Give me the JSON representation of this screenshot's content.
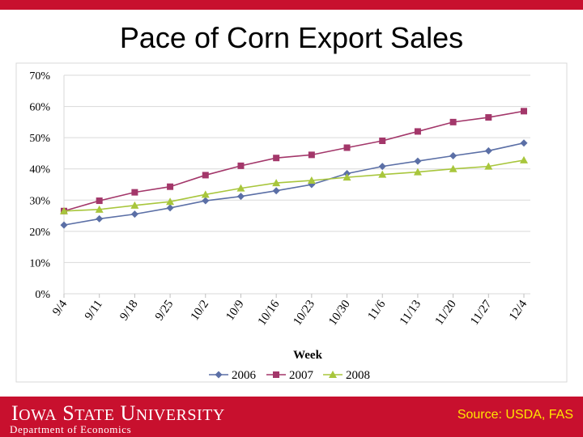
{
  "slide": {
    "title": "Pace of Corn Export Sales"
  },
  "footer": {
    "university": "Iowa State University",
    "department": "Department of Economics",
    "source": "Source: USDA, FAS"
  },
  "chart_data": {
    "type": "line",
    "title": "Pace of Corn Export Sales",
    "xlabel": "Week",
    "ylabel": "",
    "categories": [
      "9/4",
      "9/11",
      "9/18",
      "9/25",
      "10/2",
      "10/9",
      "10/16",
      "10/23",
      "10/30",
      "11/6",
      "11/13",
      "11/20",
      "11/27",
      "12/4"
    ],
    "ylim": [
      0,
      70
    ],
    "yticks": [
      0,
      10,
      20,
      30,
      40,
      50,
      60,
      70
    ],
    "ytick_labels": [
      "0%",
      "10%",
      "20%",
      "30%",
      "40%",
      "50%",
      "60%",
      "70%"
    ],
    "legend_position": "bottom",
    "series": [
      {
        "name": "2006",
        "color": "#5b6fa6",
        "marker": "diamond",
        "values": [
          22.0,
          24.0,
          25.5,
          27.5,
          29.8,
          31.2,
          33.0,
          35.0,
          38.5,
          40.8,
          42.5,
          44.2,
          45.8,
          48.3
        ]
      },
      {
        "name": "2007",
        "color": "#a3376a",
        "marker": "square",
        "values": [
          26.5,
          29.8,
          32.5,
          34.3,
          38.0,
          41.0,
          43.5,
          44.5,
          46.8,
          49.0,
          52.0,
          55.0,
          56.5,
          58.5
        ]
      },
      {
        "name": "2008",
        "color": "#a8c63c",
        "marker": "triangle",
        "values": [
          26.5,
          27.0,
          28.3,
          29.5,
          31.8,
          33.8,
          35.5,
          36.3,
          37.3,
          38.2,
          39.0,
          40.0,
          40.8,
          42.8
        ]
      }
    ]
  }
}
